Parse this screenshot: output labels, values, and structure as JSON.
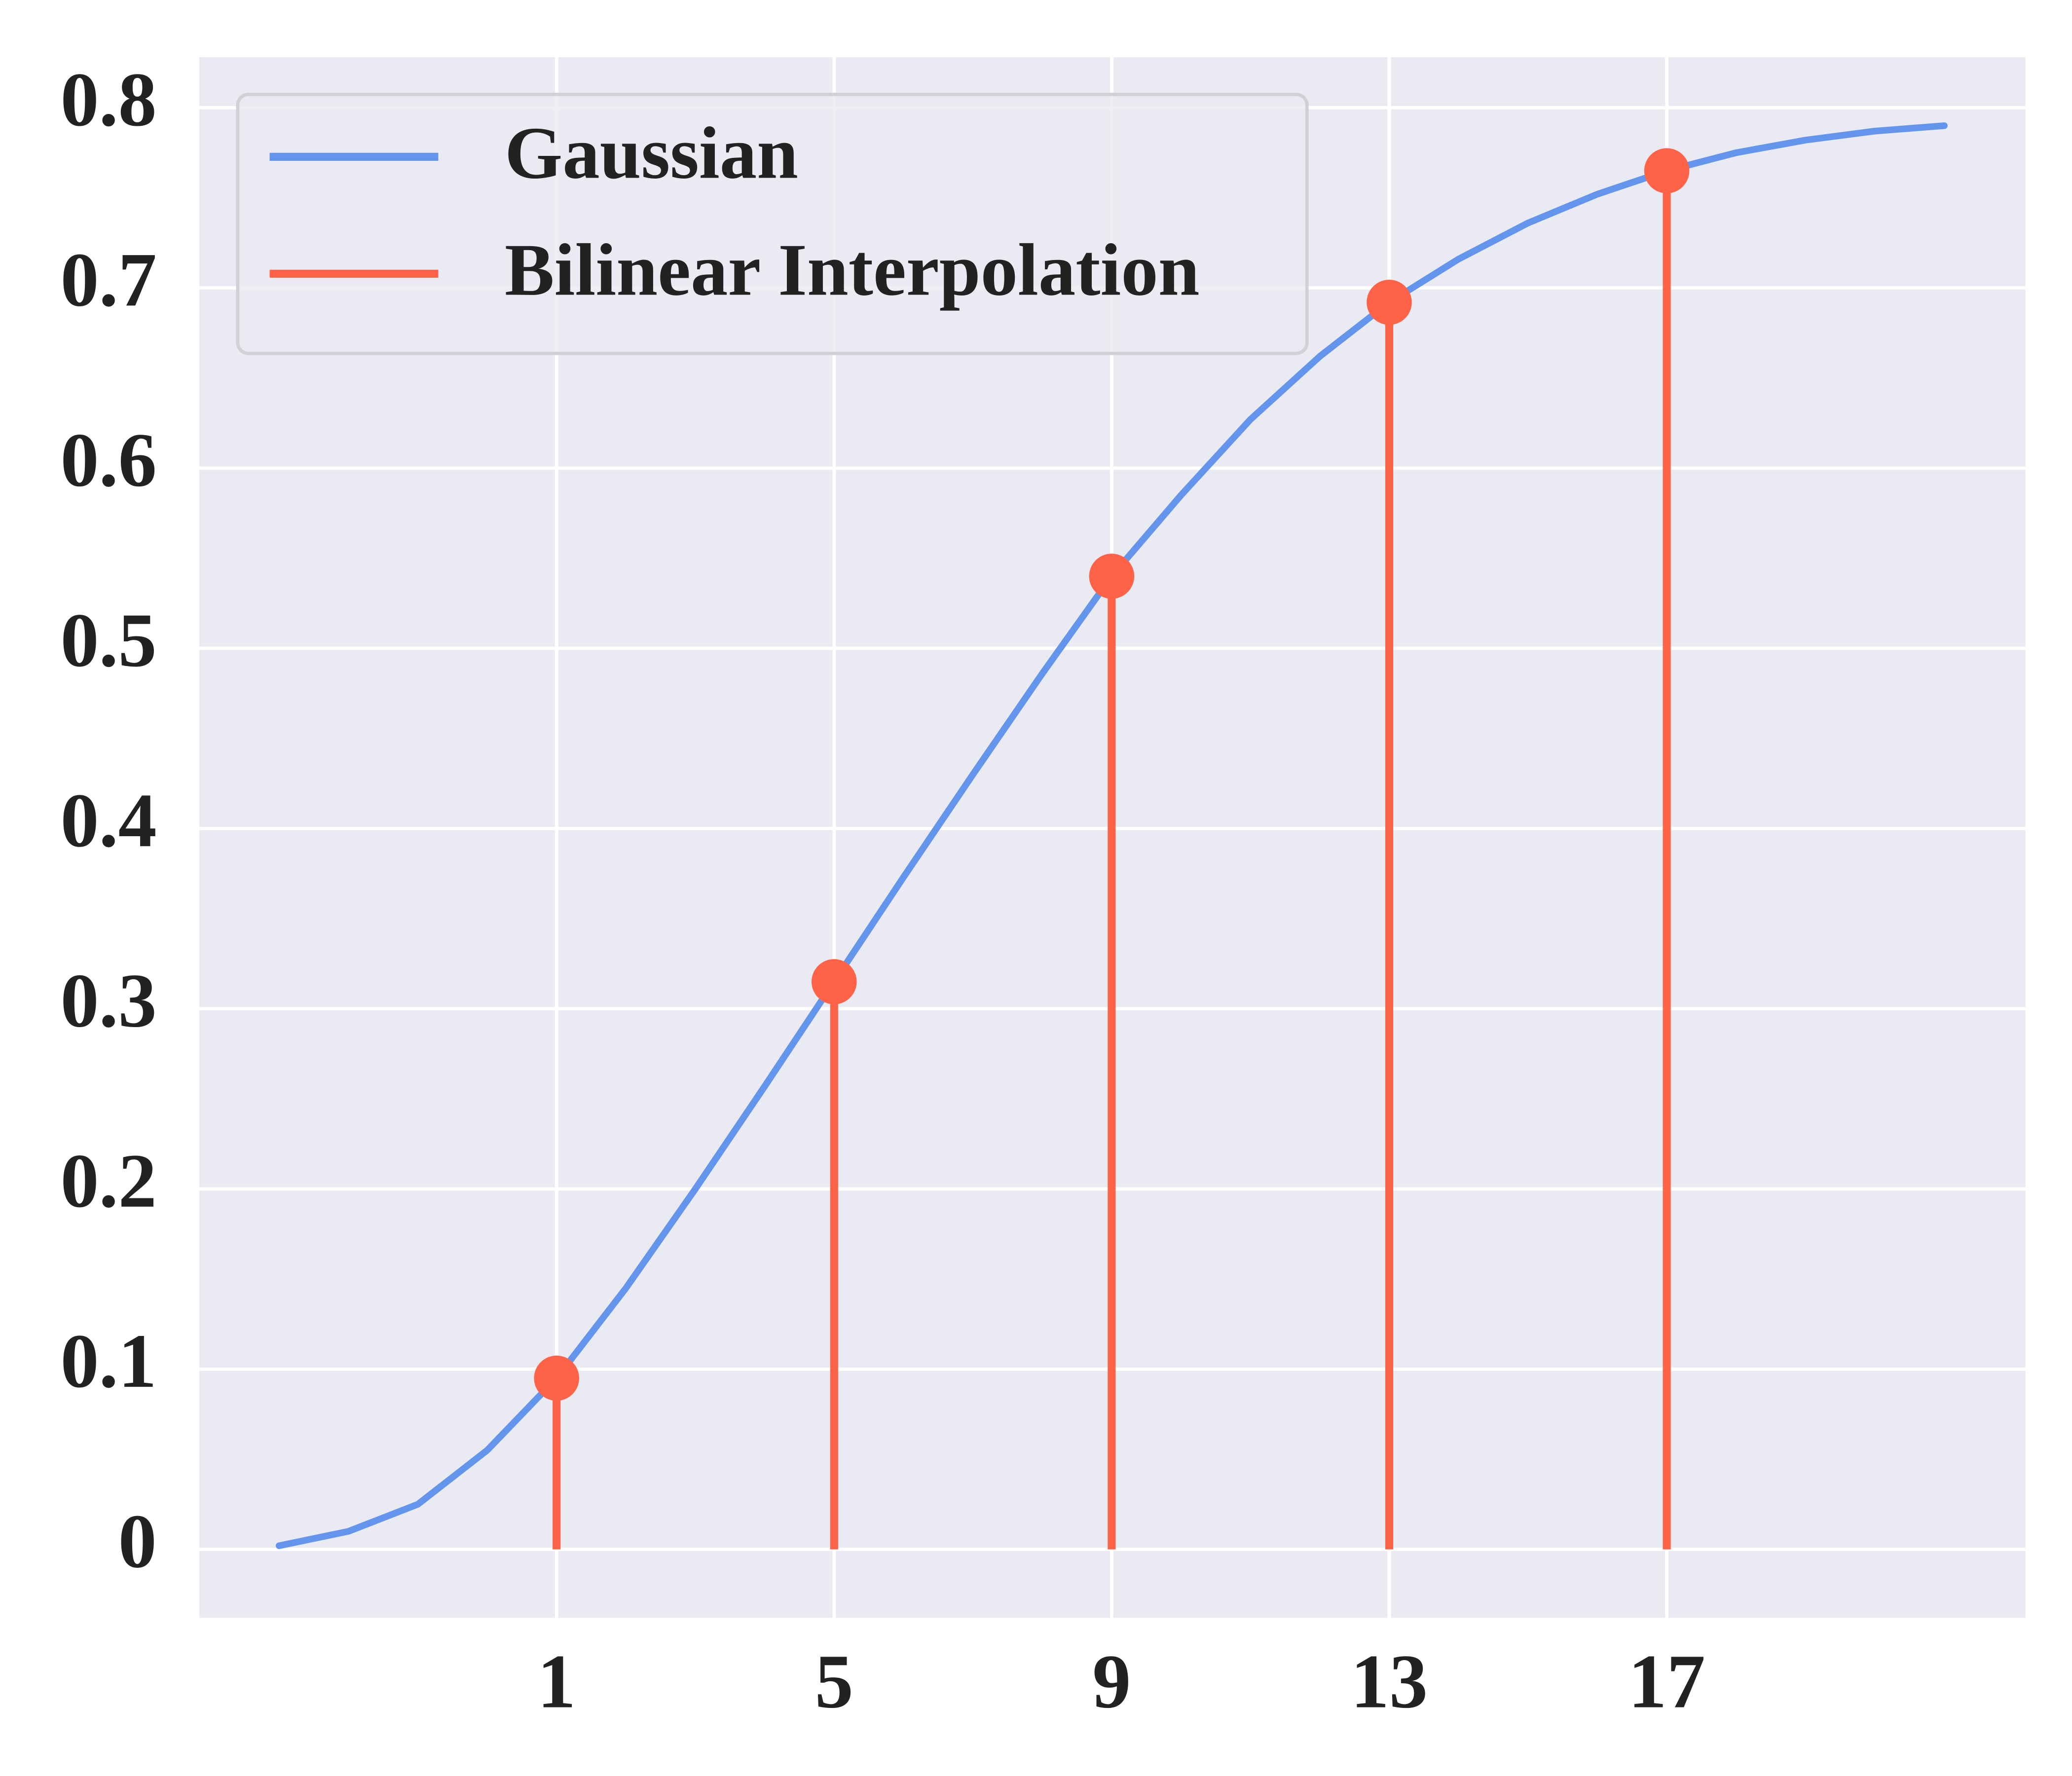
{
  "chart_data": {
    "type": "line",
    "series": [
      {
        "name": "Gaussian",
        "type": "line",
        "color": "#6495ed",
        "x": [
          -3,
          -2,
          -1,
          0,
          1,
          2,
          3,
          4,
          5,
          6,
          7,
          8,
          9,
          10,
          11,
          12,
          13,
          14,
          15,
          16,
          17,
          18,
          19,
          20,
          21
        ],
        "values": [
          0.002,
          0.01,
          0.025,
          0.055,
          0.095,
          0.145,
          0.2,
          0.257,
          0.315,
          0.373,
          0.43,
          0.486,
          0.54,
          0.585,
          0.627,
          0.662,
          0.692,
          0.716,
          0.736,
          0.752,
          0.765,
          0.775,
          0.782,
          0.787,
          0.79
        ]
      },
      {
        "name": "Bilinear Interpolation",
        "type": "stem",
        "color": "#ff6347",
        "x": [
          1,
          5,
          9,
          13,
          17
        ],
        "values": [
          0.095,
          0.315,
          0.54,
          0.692,
          0.765
        ]
      }
    ],
    "xlim": [
      -4.15,
      22.17
    ],
    "xticks": [
      1,
      5,
      9,
      13,
      17
    ],
    "ylim": [
      -0.038,
      0.828
    ],
    "yticks": [
      0,
      0.1,
      0.2,
      0.3,
      0.4,
      0.5,
      0.6,
      0.7,
      0.8
    ],
    "grid": true,
    "legend": "upper left"
  }
}
